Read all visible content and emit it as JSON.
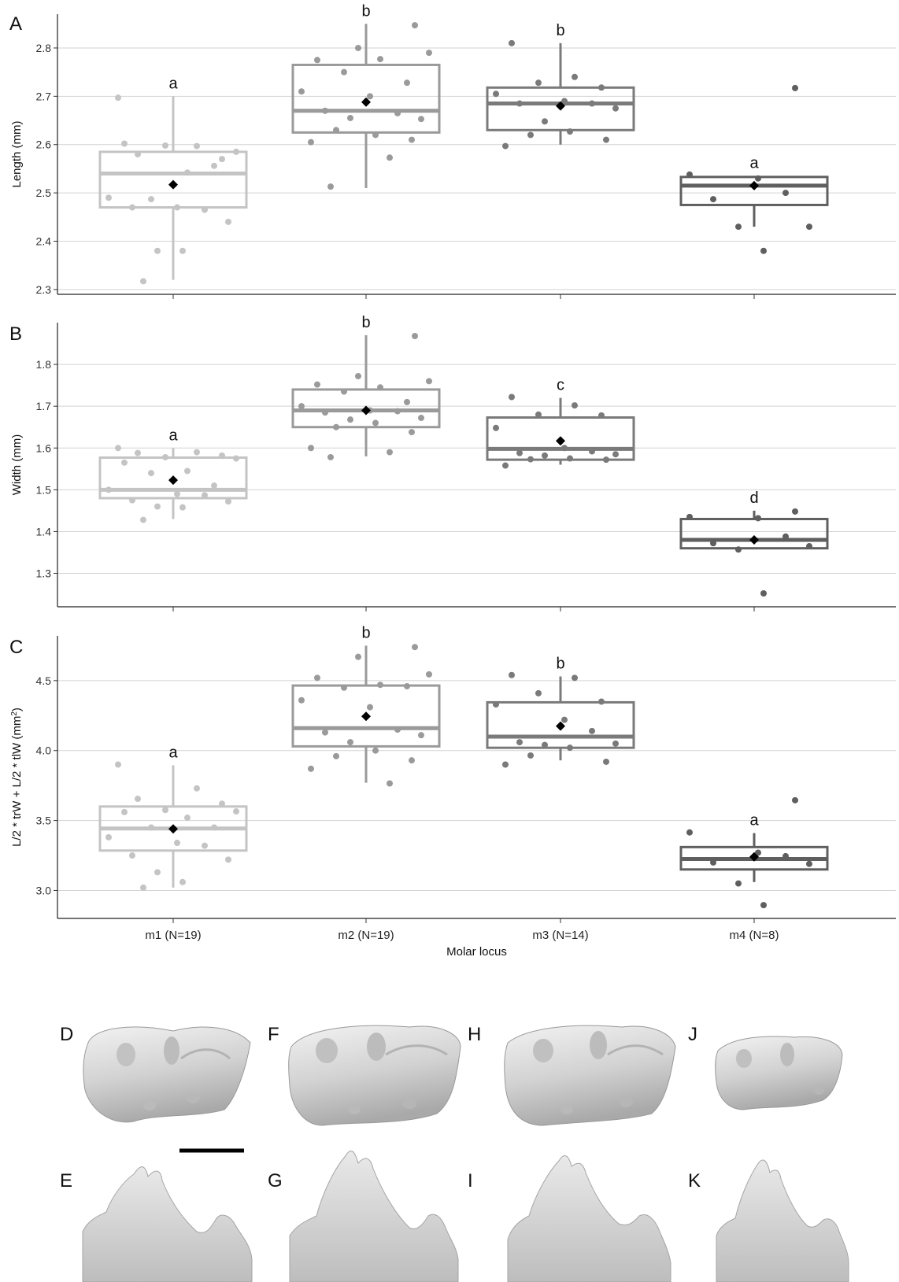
{
  "chart_data": [
    {
      "panel": "A",
      "type": "box",
      "ylabel": "Length (mm)",
      "ylim": [
        2.29,
        2.87
      ],
      "yticks": [
        2.3,
        2.4,
        2.5,
        2.6,
        2.7,
        2.8
      ],
      "grid": true,
      "categories": [
        "m1 (N=19)",
        "m2 (N=19)",
        "m3 (N=14)",
        "m4 (N=8)"
      ],
      "boxes": [
        {
          "q1": 2.47,
          "median": 2.54,
          "q3": 2.585,
          "lower": 2.32,
          "upper": 2.7,
          "mean": 2.517,
          "letter": "a",
          "color": "#c4c4c4",
          "points": [
            2.697,
            2.597,
            2.58,
            2.57,
            2.598,
            2.585,
            2.602,
            2.542,
            2.487,
            2.556,
            2.49,
            2.47,
            2.465,
            2.47,
            2.44,
            2.38,
            2.38,
            2.317
          ]
        },
        {
          "q1": 2.625,
          "median": 2.67,
          "q3": 2.765,
          "lower": 2.51,
          "upper": 2.85,
          "mean": 2.688,
          "letter": "b",
          "color": "#9a9a9a",
          "points": [
            2.847,
            2.8,
            2.79,
            2.775,
            2.777,
            2.75,
            2.728,
            2.71,
            2.7,
            2.665,
            2.67,
            2.653,
            2.655,
            2.62,
            2.63,
            2.61,
            2.605,
            2.573,
            2.513
          ]
        },
        {
          "q1": 2.63,
          "median": 2.685,
          "q3": 2.718,
          "lower": 2.6,
          "upper": 2.81,
          "mean": 2.68,
          "letter": "b",
          "color": "#7a7a7a",
          "points": [
            2.81,
            2.74,
            2.728,
            2.718,
            2.705,
            2.69,
            2.685,
            2.685,
            2.675,
            2.648,
            2.627,
            2.62,
            2.61,
            2.597
          ]
        },
        {
          "q1": 2.475,
          "median": 2.515,
          "q3": 2.533,
          "lower": 2.43,
          "upper": 2.535,
          "mean": 2.515,
          "letter": "a",
          "color": "#5f5f5f",
          "points": [
            2.717,
            2.538,
            2.53,
            2.5,
            2.487,
            2.43,
            2.43,
            2.38
          ]
        }
      ]
    },
    {
      "panel": "B",
      "type": "box",
      "ylabel": "Width (mm)",
      "ylim": [
        1.22,
        1.9
      ],
      "yticks": [
        1.3,
        1.4,
        1.5,
        1.6,
        1.7,
        1.8
      ],
      "grid": true,
      "categories": [
        "m1 (N=19)",
        "m2 (N=19)",
        "m3 (N=14)",
        "m4 (N=8)"
      ],
      "boxes": [
        {
          "q1": 1.48,
          "median": 1.5,
          "q3": 1.577,
          "lower": 1.43,
          "upper": 1.6,
          "mean": 1.523,
          "letter": "a",
          "color": "#c4c4c4",
          "points": [
            1.6,
            1.59,
            1.588,
            1.582,
            1.578,
            1.575,
            1.565,
            1.545,
            1.54,
            1.51,
            1.5,
            1.49,
            1.487,
            1.475,
            1.472,
            1.46,
            1.458,
            1.428
          ]
        },
        {
          "q1": 1.65,
          "median": 1.69,
          "q3": 1.74,
          "lower": 1.58,
          "upper": 1.87,
          "mean": 1.69,
          "letter": "b",
          "color": "#9a9a9a",
          "points": [
            1.868,
            1.772,
            1.76,
            1.752,
            1.745,
            1.735,
            1.71,
            1.7,
            1.69,
            1.688,
            1.685,
            1.672,
            1.668,
            1.66,
            1.65,
            1.638,
            1.6,
            1.59,
            1.578
          ]
        },
        {
          "q1": 1.572,
          "median": 1.598,
          "q3": 1.673,
          "lower": 1.56,
          "upper": 1.72,
          "mean": 1.617,
          "letter": "c",
          "color": "#7a7a7a",
          "points": [
            1.722,
            1.702,
            1.68,
            1.678,
            1.648,
            1.6,
            1.592,
            1.588,
            1.585,
            1.582,
            1.575,
            1.573,
            1.572,
            1.558
          ]
        },
        {
          "q1": 1.36,
          "median": 1.38,
          "q3": 1.43,
          "lower": 1.36,
          "upper": 1.45,
          "mean": 1.38,
          "letter": "d",
          "color": "#5f5f5f",
          "points": [
            1.448,
            1.435,
            1.432,
            1.388,
            1.372,
            1.365,
            1.357,
            1.252
          ]
        }
      ]
    },
    {
      "panel": "C",
      "type": "box",
      "ylabel": "L/2 * trW + L/2 * tlW (mm",
      "ylabel_sup": "2",
      "ylabel_end": ")",
      "xlabel": "Molar locus",
      "ylim": [
        2.8,
        4.82
      ],
      "yticks": [
        3.0,
        3.5,
        4.0,
        4.5
      ],
      "grid": true,
      "categories": [
        "m1 (N=19)",
        "m2 (N=19)",
        "m3 (N=14)",
        "m4 (N=8)"
      ],
      "boxes": [
        {
          "q1": 3.285,
          "median": 3.443,
          "q3": 3.6,
          "lower": 3.02,
          "upper": 3.895,
          "mean": 3.44,
          "letter": "a",
          "color": "#c4c4c4",
          "points": [
            3.9,
            3.73,
            3.655,
            3.62,
            3.575,
            3.565,
            3.56,
            3.52,
            3.45,
            3.45,
            3.38,
            3.34,
            3.32,
            3.25,
            3.22,
            3.13,
            3.06,
            3.02
          ]
        },
        {
          "q1": 4.03,
          "median": 4.16,
          "q3": 4.465,
          "lower": 3.77,
          "upper": 4.75,
          "mean": 4.245,
          "letter": "b",
          "color": "#9a9a9a",
          "points": [
            4.74,
            4.67,
            4.545,
            4.52,
            4.47,
            4.45,
            4.46,
            4.36,
            4.31,
            4.15,
            4.13,
            4.11,
            4.06,
            4.0,
            3.96,
            3.93,
            3.87,
            3.765
          ]
        },
        {
          "q1": 4.02,
          "median": 4.1,
          "q3": 4.345,
          "lower": 3.93,
          "upper": 4.53,
          "mean": 4.175,
          "letter": "b",
          "color": "#7a7a7a",
          "points": [
            4.54,
            4.52,
            4.41,
            4.35,
            4.33,
            4.22,
            4.14,
            4.06,
            4.05,
            4.04,
            4.02,
            3.965,
            3.92,
            3.9
          ]
        },
        {
          "q1": 3.15,
          "median": 3.225,
          "q3": 3.31,
          "lower": 3.06,
          "upper": 3.41,
          "mean": 3.24,
          "letter": "a",
          "color": "#5f5f5f",
          "points": [
            3.645,
            3.415,
            3.27,
            3.245,
            3.2,
            3.19,
            3.05,
            2.895
          ]
        }
      ]
    }
  ],
  "specimen_panels": {
    "labels_top": [
      "D",
      "F",
      "H",
      "J"
    ],
    "labels_bottom": [
      "E",
      "G",
      "I",
      "K"
    ]
  }
}
